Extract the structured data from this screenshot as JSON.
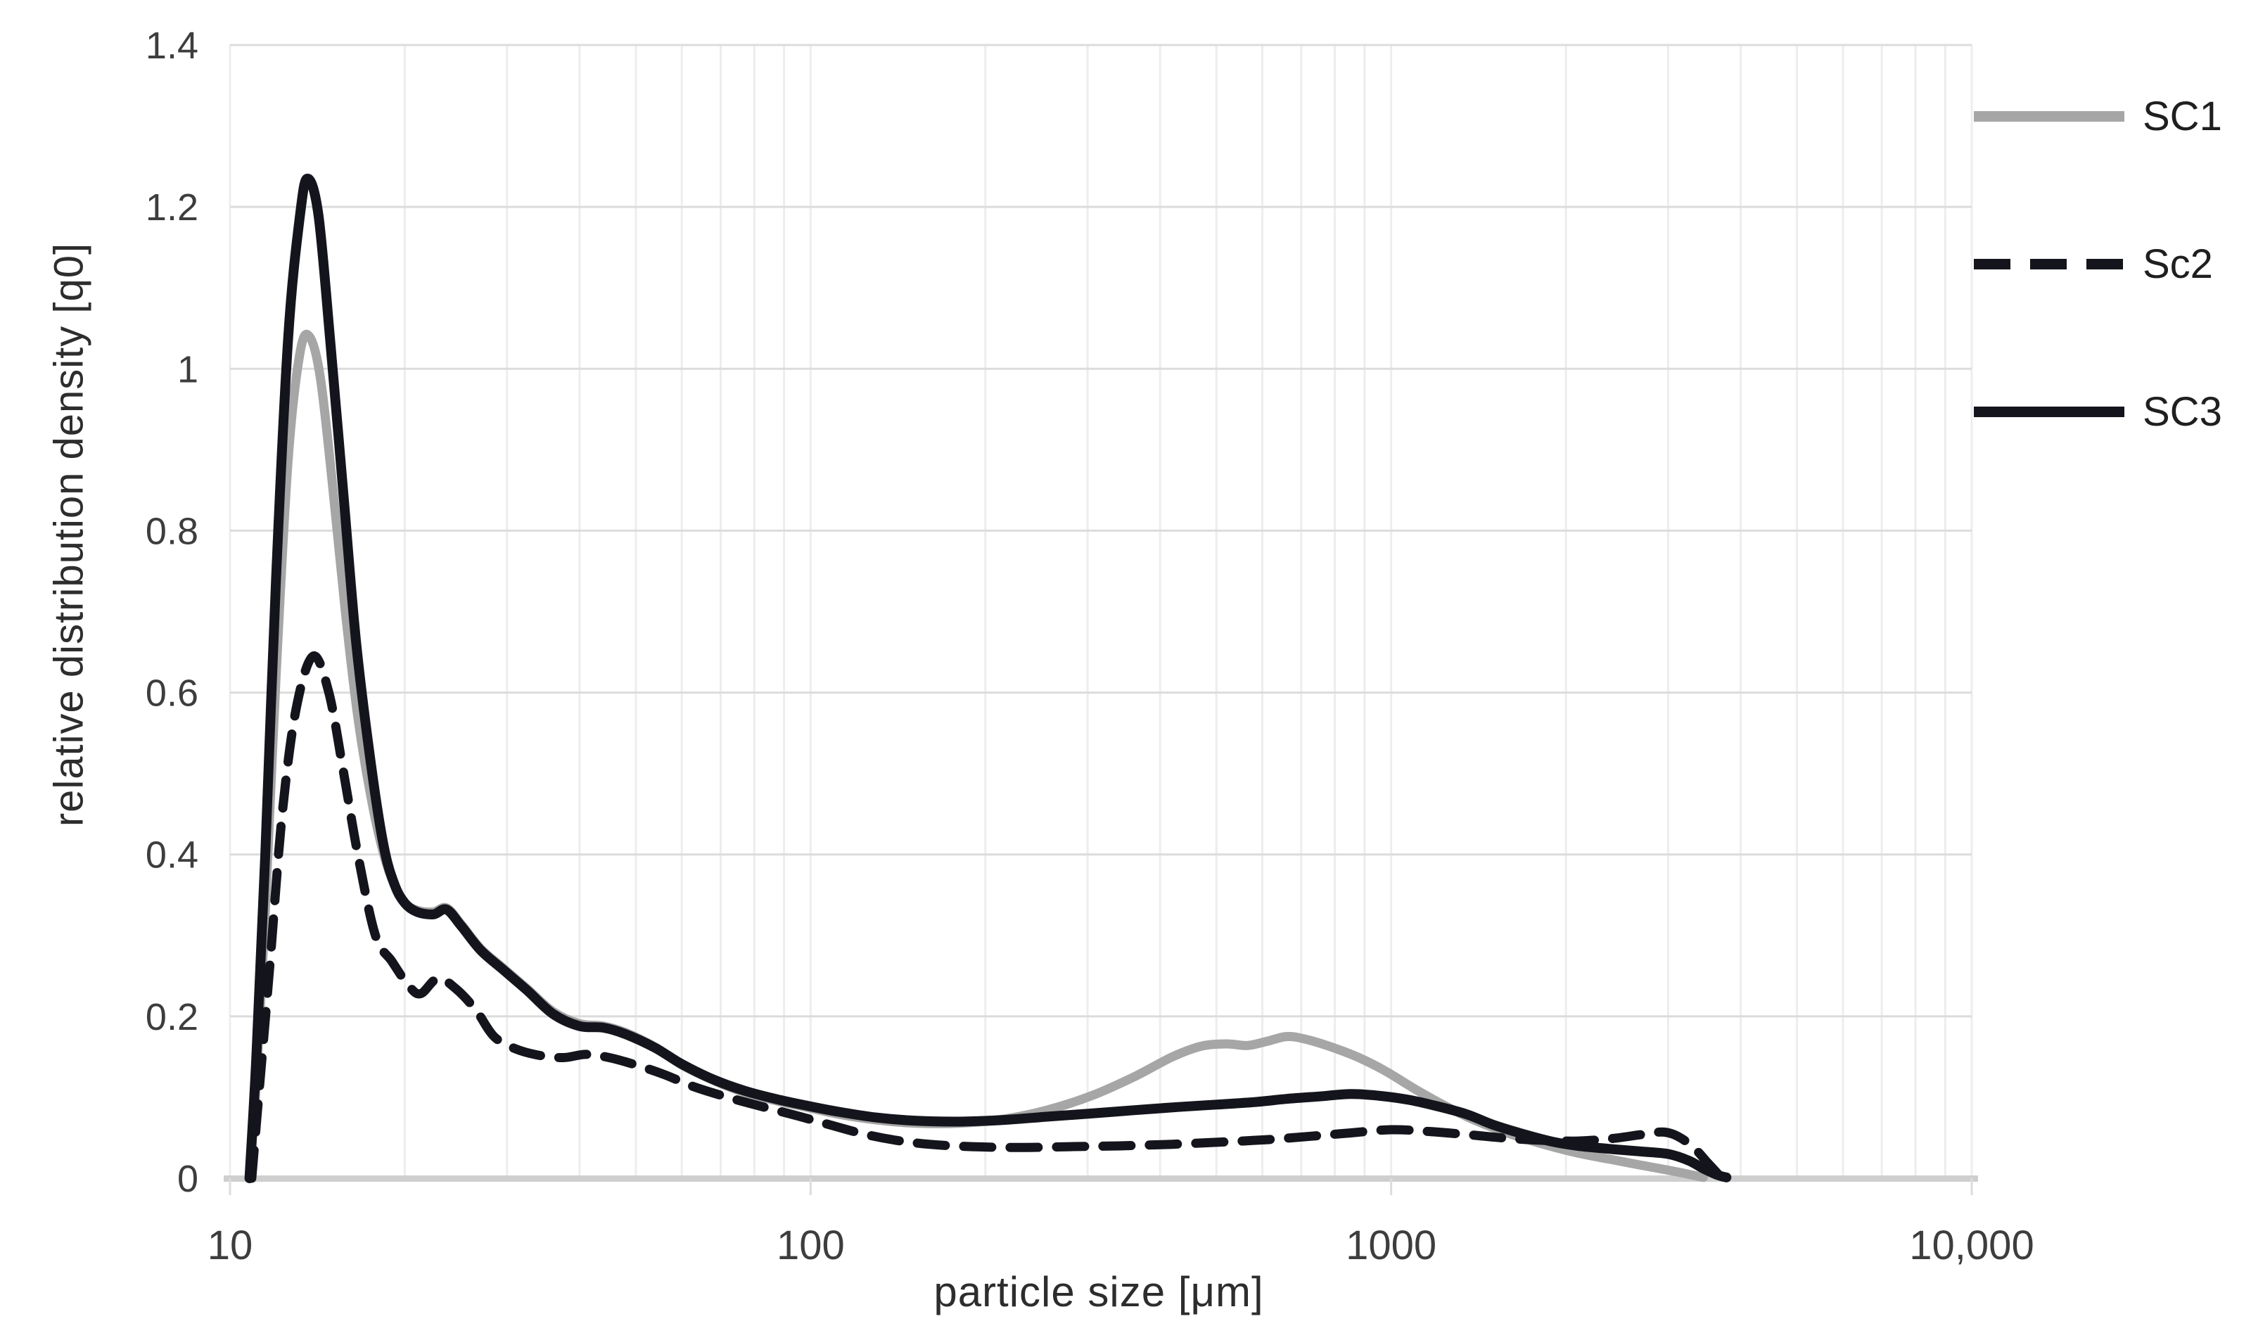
{
  "chart_data": {
    "type": "line",
    "title": "",
    "xlabel": "particle size [μm]",
    "ylabel": "relative distribution density [q0]",
    "x_scale": "log",
    "xlim": [
      10,
      10000
    ],
    "ylim": [
      0,
      1.4
    ],
    "x_ticks": [
      10,
      100,
      1000,
      10000
    ],
    "x_tick_labels": [
      "10",
      "100",
      "1000",
      "10,000"
    ],
    "y_ticks": [
      0,
      0.2,
      0.4,
      0.6,
      0.8,
      1,
      1.2,
      1.4
    ],
    "y_tick_labels": [
      "0",
      "0.2",
      "0.4",
      "0.6",
      "0.8",
      "1",
      "1.2",
      "1.4"
    ],
    "grid": {
      "horizontal_major": true,
      "vertical_log_minor": true
    },
    "legend_position": "right-outside",
    "colors": {
      "gray_series": "#a6a6a6",
      "black_series": "#14141c",
      "grid_major": "#dcdcdc",
      "grid_minor": "#ededed",
      "axis_line": "#cfcfcf",
      "tick_text": "#3d3d3d"
    },
    "series": [
      {
        "name": "SC1",
        "color": "#a6a6a6",
        "style": "solid",
        "points": [
          [
            10.8,
            0
          ],
          [
            11.1,
            0.12
          ],
          [
            11.5,
            0.33
          ],
          [
            12,
            0.62
          ],
          [
            12.6,
            0.89
          ],
          [
            13.2,
            1.02
          ],
          [
            13.7,
            1.04
          ],
          [
            14.3,
            0.99
          ],
          [
            15,
            0.86
          ],
          [
            15.8,
            0.7
          ],
          [
            16.6,
            0.57
          ],
          [
            17.5,
            0.47
          ],
          [
            18.4,
            0.4
          ],
          [
            19.2,
            0.362
          ],
          [
            20,
            0.34
          ],
          [
            21,
            0.331
          ],
          [
            22.4,
            0.329
          ],
          [
            23.6,
            0.334
          ],
          [
            25,
            0.314
          ],
          [
            27,
            0.284
          ],
          [
            29.5,
            0.26
          ],
          [
            32.5,
            0.234
          ],
          [
            36,
            0.206
          ],
          [
            40,
            0.191
          ],
          [
            44,
            0.188
          ],
          [
            48,
            0.18
          ],
          [
            54,
            0.162
          ],
          [
            60,
            0.14
          ],
          [
            68,
            0.121
          ],
          [
            77,
            0.106
          ],
          [
            87,
            0.096
          ],
          [
            98,
            0.088
          ],
          [
            112,
            0.079
          ],
          [
            130,
            0.072
          ],
          [
            152,
            0.068
          ],
          [
            180,
            0.068
          ],
          [
            215,
            0.073
          ],
          [
            255,
            0.084
          ],
          [
            305,
            0.102
          ],
          [
            360,
            0.125
          ],
          [
            420,
            0.15
          ],
          [
            470,
            0.163
          ],
          [
            520,
            0.166
          ],
          [
            565,
            0.164
          ],
          [
            610,
            0.169
          ],
          [
            660,
            0.175
          ],
          [
            710,
            0.172
          ],
          [
            790,
            0.162
          ],
          [
            880,
            0.149
          ],
          [
            980,
            0.132
          ],
          [
            1100,
            0.11
          ],
          [
            1250,
            0.088
          ],
          [
            1400,
            0.071
          ],
          [
            1600,
            0.055
          ],
          [
            1850,
            0.041
          ],
          [
            2100,
            0.031
          ],
          [
            2400,
            0.023
          ],
          [
            2700,
            0.016
          ],
          [
            3000,
            0.01
          ],
          [
            3250,
            0.005
          ],
          [
            3450,
            0.001
          ]
        ]
      },
      {
        "name": "Sc2",
        "color": "#14141c",
        "style": "dashed",
        "points": [
          [
            10.9,
            0
          ],
          [
            11.2,
            0.1
          ],
          [
            11.7,
            0.26
          ],
          [
            12.3,
            0.45
          ],
          [
            13,
            0.58
          ],
          [
            13.9,
            0.645
          ],
          [
            14.8,
            0.6
          ],
          [
            15.7,
            0.5
          ],
          [
            16.6,
            0.4
          ],
          [
            17.8,
            0.3
          ],
          [
            19,
            0.268
          ],
          [
            20.3,
            0.238
          ],
          [
            21.3,
            0.228
          ],
          [
            22.8,
            0.247
          ],
          [
            24.5,
            0.234
          ],
          [
            26.5,
            0.208
          ],
          [
            28.5,
            0.175
          ],
          [
            31,
            0.16
          ],
          [
            34,
            0.152
          ],
          [
            37.5,
            0.149
          ],
          [
            41,
            0.153
          ],
          [
            45,
            0.149
          ],
          [
            50,
            0.14
          ],
          [
            56,
            0.128
          ],
          [
            63,
            0.113
          ],
          [
            72,
            0.1
          ],
          [
            82,
            0.089
          ],
          [
            95,
            0.077
          ],
          [
            108,
            0.066
          ],
          [
            123,
            0.055
          ],
          [
            140,
            0.047
          ],
          [
            160,
            0.042
          ],
          [
            190,
            0.039
          ],
          [
            230,
            0.038
          ],
          [
            280,
            0.039
          ],
          [
            340,
            0.04
          ],
          [
            420,
            0.042
          ],
          [
            520,
            0.045
          ],
          [
            620,
            0.048
          ],
          [
            730,
            0.052
          ],
          [
            850,
            0.056
          ],
          [
            1000,
            0.06
          ],
          [
            1150,
            0.058
          ],
          [
            1350,
            0.054
          ],
          [
            1550,
            0.05
          ],
          [
            1800,
            0.047
          ],
          [
            2100,
            0.046
          ],
          [
            2400,
            0.049
          ],
          [
            2700,
            0.054
          ],
          [
            2950,
            0.057
          ],
          [
            3150,
            0.05
          ],
          [
            3350,
            0.035
          ],
          [
            3500,
            0.02
          ],
          [
            3650,
            0.006
          ]
        ]
      },
      {
        "name": "SC3",
        "color": "#14141c",
        "style": "solid",
        "points": [
          [
            10.8,
            0
          ],
          [
            11.1,
            0.15
          ],
          [
            11.5,
            0.4
          ],
          [
            12,
            0.74
          ],
          [
            12.6,
            1.04
          ],
          [
            13.2,
            1.19
          ],
          [
            13.6,
            1.235
          ],
          [
            14.2,
            1.19
          ],
          [
            14.9,
            1.03
          ],
          [
            15.7,
            0.84
          ],
          [
            16.5,
            0.66
          ],
          [
            17.5,
            0.51
          ],
          [
            18.4,
            0.41
          ],
          [
            19.2,
            0.363
          ],
          [
            20,
            0.34
          ],
          [
            21,
            0.329
          ],
          [
            22.4,
            0.326
          ],
          [
            23.6,
            0.332
          ],
          [
            25,
            0.312
          ],
          [
            27,
            0.282
          ],
          [
            29.5,
            0.258
          ],
          [
            32.5,
            0.232
          ],
          [
            36,
            0.203
          ],
          [
            40,
            0.188
          ],
          [
            44,
            0.186
          ],
          [
            48,
            0.178
          ],
          [
            54,
            0.161
          ],
          [
            60,
            0.141
          ],
          [
            68,
            0.122
          ],
          [
            77,
            0.108
          ],
          [
            87,
            0.098
          ],
          [
            98,
            0.09
          ],
          [
            112,
            0.082
          ],
          [
            130,
            0.075
          ],
          [
            152,
            0.071
          ],
          [
            180,
            0.07
          ],
          [
            215,
            0.072
          ],
          [
            255,
            0.076
          ],
          [
            305,
            0.08
          ],
          [
            360,
            0.084
          ],
          [
            430,
            0.088
          ],
          [
            500,
            0.091
          ],
          [
            580,
            0.094
          ],
          [
            660,
            0.098
          ],
          [
            750,
            0.101
          ],
          [
            850,
            0.104
          ],
          [
            950,
            0.102
          ],
          [
            1070,
            0.097
          ],
          [
            1200,
            0.089
          ],
          [
            1350,
            0.079
          ],
          [
            1500,
            0.066
          ],
          [
            1700,
            0.054
          ],
          [
            1900,
            0.045
          ],
          [
            2100,
            0.04
          ],
          [
            2400,
            0.036
          ],
          [
            2700,
            0.033
          ],
          [
            3000,
            0.03
          ],
          [
            3250,
            0.022
          ],
          [
            3450,
            0.012
          ],
          [
            3650,
            0.004
          ],
          [
            3780,
            0.001
          ]
        ]
      }
    ]
  },
  "legend": {
    "entries": [
      {
        "label": "SC1"
      },
      {
        "label": "Sc2"
      },
      {
        "label": "SC3"
      }
    ]
  }
}
